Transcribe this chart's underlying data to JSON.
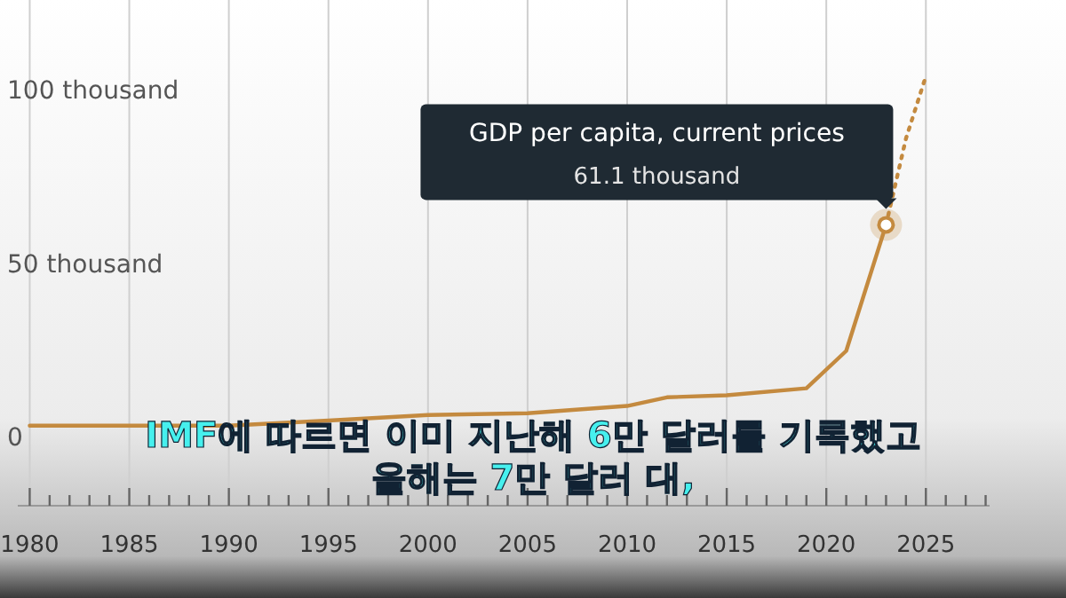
{
  "chart_data": {
    "type": "line",
    "x": [
      1980,
      1985,
      1990,
      1995,
      2000,
      2005,
      2010,
      2012,
      2015,
      2019,
      2021,
      2023
    ],
    "series": [
      {
        "color": "#c48a3f",
        "values": [
          3.1,
          3.1,
          3.1,
          4.6,
          6.2,
          6.7,
          8.8,
          11.3,
          11.9,
          13.9,
          24.7,
          61.1
        ],
        "line_style": "solid"
      },
      {
        "color": "#c48a3f",
        "x": [
          2023,
          2024,
          2025
        ],
        "values": [
          61.1,
          86,
          104
        ],
        "line_style": "dotted"
      }
    ],
    "xlim": [
      1979.4,
      2028.2
    ],
    "xticks": [
      1980,
      {
        "value": 1981,
        "label": null
      },
      {
        "value": 1982,
        "label": null
      },
      {
        "value": 1983,
        "label": null
      },
      {
        "value": 1984,
        "label": null
      },
      1985,
      {
        "value": 1986,
        "label": null
      },
      {
        "value": 1987,
        "label": null
      },
      {
        "value": 1988,
        "label": null
      },
      {
        "value": 1989,
        "label": null
      },
      1990,
      {
        "value": 1991,
        "label": null
      },
      {
        "value": 1992,
        "label": null
      },
      {
        "value": 1993,
        "label": null
      },
      {
        "value": 1994,
        "label": null
      },
      1995,
      {
        "value": 1996,
        "label": null
      },
      {
        "value": 1997,
        "label": null
      },
      {
        "value": 1998,
        "label": null
      },
      {
        "value": 1999,
        "label": null
      },
      2000,
      {
        "value": 2001,
        "label": null
      },
      {
        "value": 2002,
        "label": null
      },
      {
        "value": 2003,
        "label": null
      },
      {
        "value": 2004,
        "label": null
      },
      2005,
      {
        "value": 2006,
        "label": null
      },
      {
        "value": 2007,
        "label": null
      },
      {
        "value": 2008,
        "label": null
      },
      {
        "value": 2009,
        "label": null
      },
      2010,
      {
        "value": 2011,
        "label": null
      },
      {
        "value": 2012,
        "label": null
      },
      {
        "value": 2013,
        "label": null
      },
      {
        "value": 2014,
        "label": null
      },
      2015,
      {
        "value": 2016,
        "label": null
      },
      {
        "value": 2017,
        "label": null
      },
      {
        "value": 2018,
        "label": null
      },
      {
        "value": 2019,
        "label": null
      },
      2020,
      {
        "value": 2021,
        "label": null
      },
      {
        "value": 2022,
        "label": null
      },
      {
        "value": 2023,
        "label": null
      },
      {
        "value": 2024,
        "label": null
      },
      2025,
      {
        "value": 2026,
        "label": null
      },
      {
        "value": 2027,
        "label": null
      },
      {
        "value": 2028,
        "label": null
      }
    ],
    "ylim": [
      -20,
      126
    ],
    "yticks": [
      0,
      {
        "value": 50,
        "label": "50 thousand"
      },
      {
        "value": 100,
        "label": "100 thousand"
      }
    ],
    "grid": "x",
    "annotations": [
      "GDP per capita, current prices",
      "61.1 thousand",
      "IMF에 따르면 이미 지난해 6만 달러를 기록했고",
      "올해는 7만 달러 대,"
    ]
  }
}
